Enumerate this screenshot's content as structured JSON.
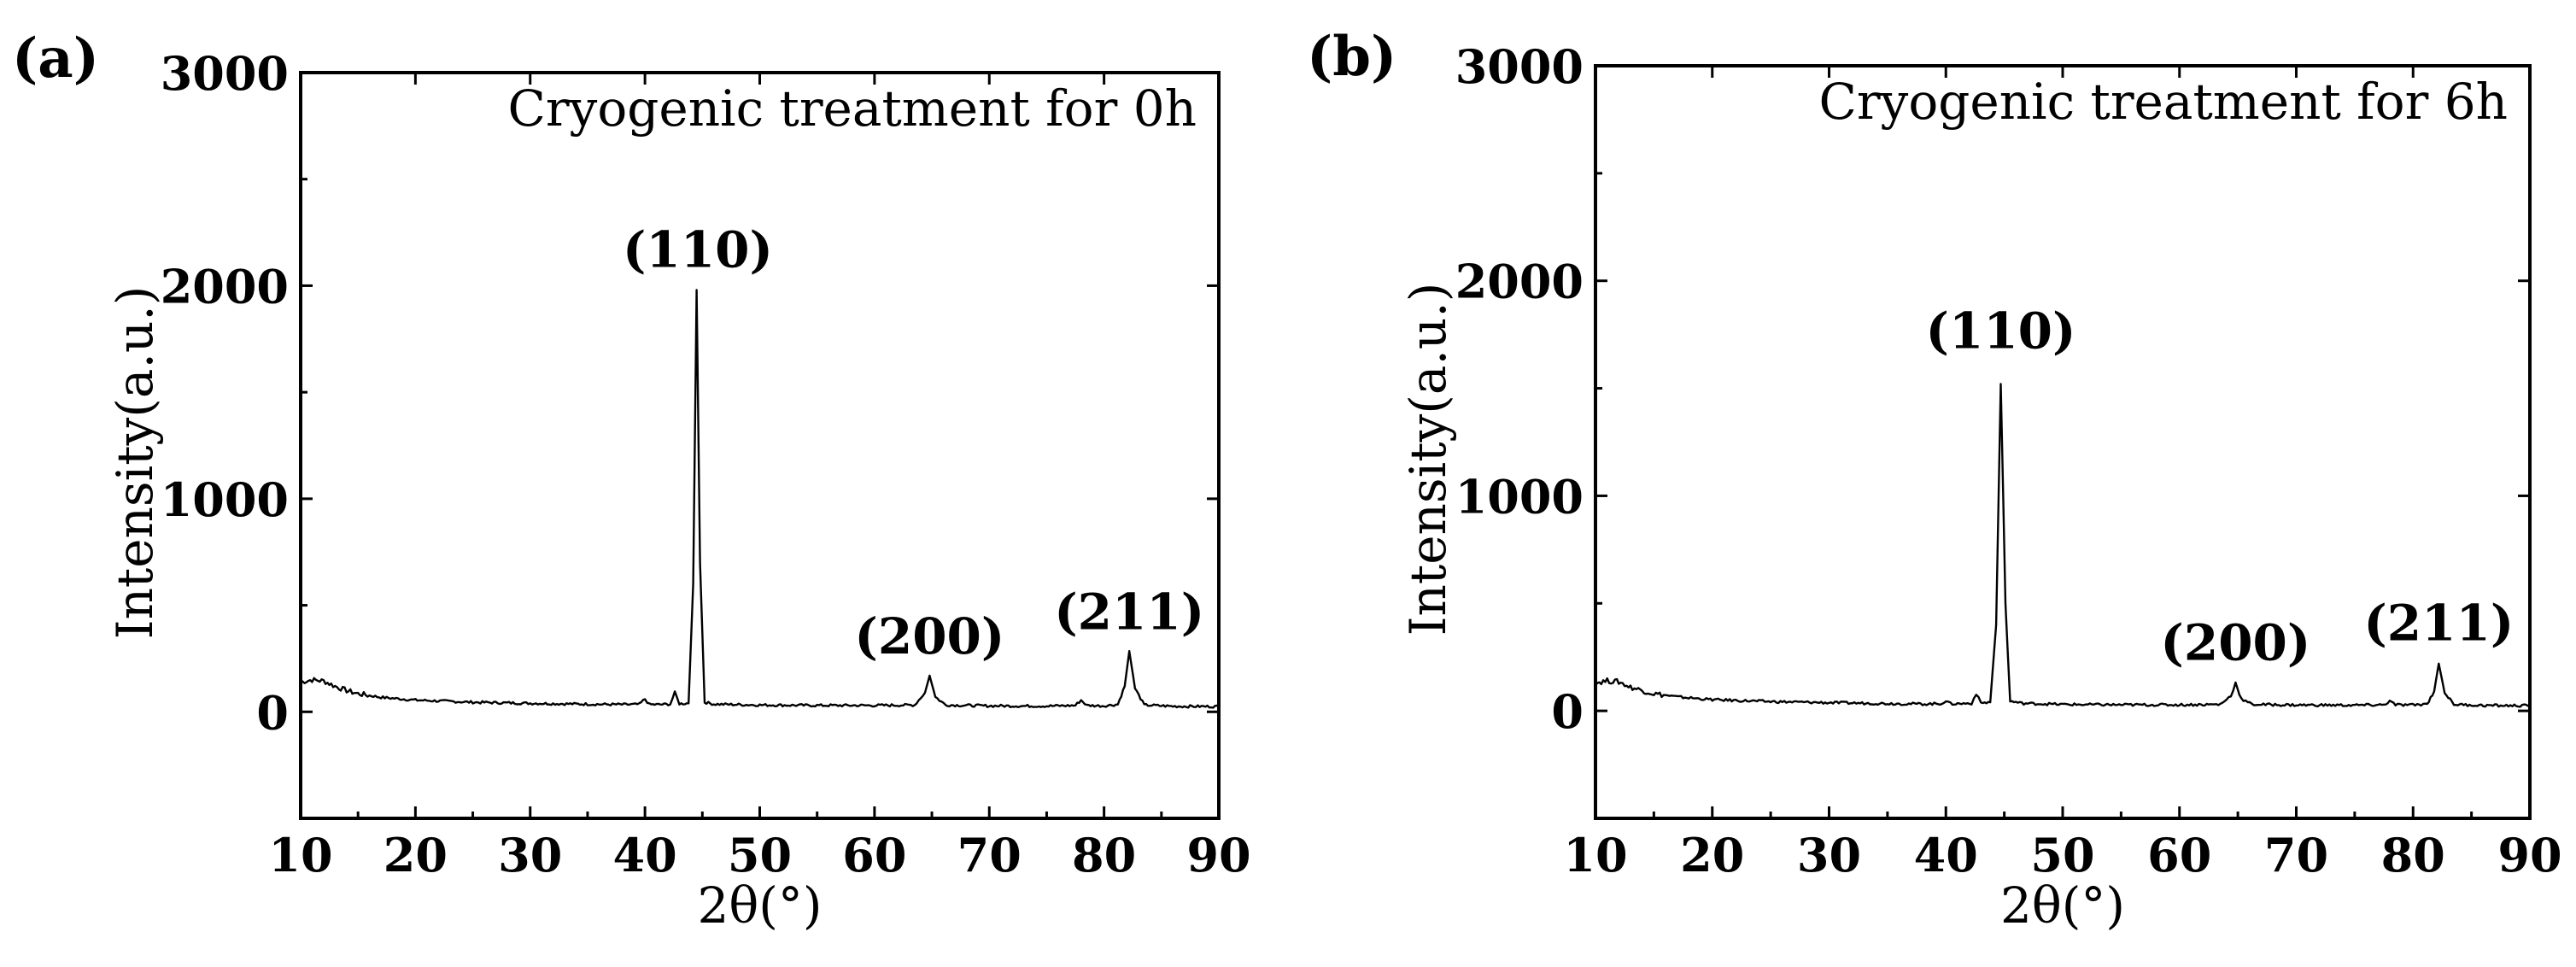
{
  "chart_data": [
    {
      "type": "line",
      "panel_label": "(a)",
      "annotation": "Cryogenic treatment for 0h",
      "xlabel": "2θ(°)",
      "ylabel": "Intensity(a.u.)",
      "xlim": [
        10,
        90
      ],
      "ylim": [
        -500,
        3000
      ],
      "xticks": [
        "10",
        "20",
        "30",
        "40",
        "50",
        "60",
        "70",
        "80",
        "90"
      ],
      "yticks": [
        "0",
        "1000",
        "2000",
        "3000"
      ],
      "grid": false,
      "series": [
        {
          "name": "Cryogenic treatment for 0h",
          "x": [
            10,
            11,
            12,
            13,
            14,
            15,
            17,
            20,
            25,
            30,
            35,
            38,
            39.5,
            40.0,
            40.4,
            41,
            42.2,
            42.6,
            43.0,
            43.8,
            44.2,
            44.5,
            44.8,
            45.2,
            46,
            50,
            55,
            60,
            63.5,
            64.4,
            64.8,
            65.3,
            66.2,
            70,
            75,
            77.5,
            78.0,
            78.5,
            80,
            81.2,
            81.8,
            82.2,
            82.7,
            83.5,
            86,
            90
          ],
          "y": [
            140,
            150,
            145,
            120,
            100,
            85,
            68,
            55,
            45,
            40,
            36,
            34,
            35,
            60,
            34,
            34,
            36,
            90,
            38,
            40,
            600,
            1980,
            700,
            45,
            36,
            32,
            30,
            30,
            32,
            90,
            170,
            70,
            32,
            28,
            27,
            30,
            55,
            30,
            28,
            35,
            120,
            285,
            110,
            32,
            26,
            25
          ]
        }
      ],
      "peak_labels": [
        {
          "text": "(110)",
          "x": 44.6,
          "y": 2000
        },
        {
          "text": "(200)",
          "x": 64.8,
          "y": 185
        },
        {
          "text": "(211)",
          "x": 82.2,
          "y": 300
        }
      ]
    },
    {
      "type": "line",
      "panel_label": "(b)",
      "annotation": "Cryogenic treatment for 6h",
      "xlabel": "2θ(°)",
      "ylabel": "Intensity(a.u.)",
      "xlim": [
        10,
        90
      ],
      "ylim": [
        -500,
        3000
      ],
      "xticks": [
        "10",
        "20",
        "30",
        "40",
        "50",
        "60",
        "70",
        "80",
        "90"
      ],
      "yticks": [
        "0",
        "1000",
        "2000",
        "3000"
      ],
      "grid": false,
      "series": [
        {
          "name": "Cryogenic treatment for 6h",
          "x": [
            10,
            11,
            12,
            13,
            14,
            15,
            17,
            20,
            25,
            30,
            35,
            38,
            39.5,
            40.0,
            40.4,
            41,
            42.2,
            42.6,
            43.0,
            43.8,
            44.3,
            44.7,
            45.1,
            45.5,
            46.5,
            50,
            55,
            60,
            63.5,
            64.4,
            64.8,
            65.3,
            66.2,
            70,
            75,
            77.5,
            78.0,
            78.5,
            80,
            81.2,
            81.8,
            82.2,
            82.7,
            83.5,
            86,
            90
          ],
          "y": [
            130,
            140,
            135,
            110,
            95,
            80,
            65,
            52,
            43,
            38,
            34,
            32,
            33,
            45,
            33,
            33,
            35,
            80,
            37,
            40,
            400,
            1520,
            500,
            45,
            35,
            30,
            28,
            28,
            30,
            70,
            130,
            55,
            30,
            27,
            26,
            28,
            45,
            28,
            27,
            32,
            90,
            220,
            85,
            30,
            25,
            24
          ]
        }
      ],
      "peak_labels": [
        {
          "text": "(110)",
          "x": 44.7,
          "y": 1600
        },
        {
          "text": "(200)",
          "x": 64.8,
          "y": 150
        },
        {
          "text": "(211)",
          "x": 82.2,
          "y": 240
        }
      ]
    }
  ]
}
